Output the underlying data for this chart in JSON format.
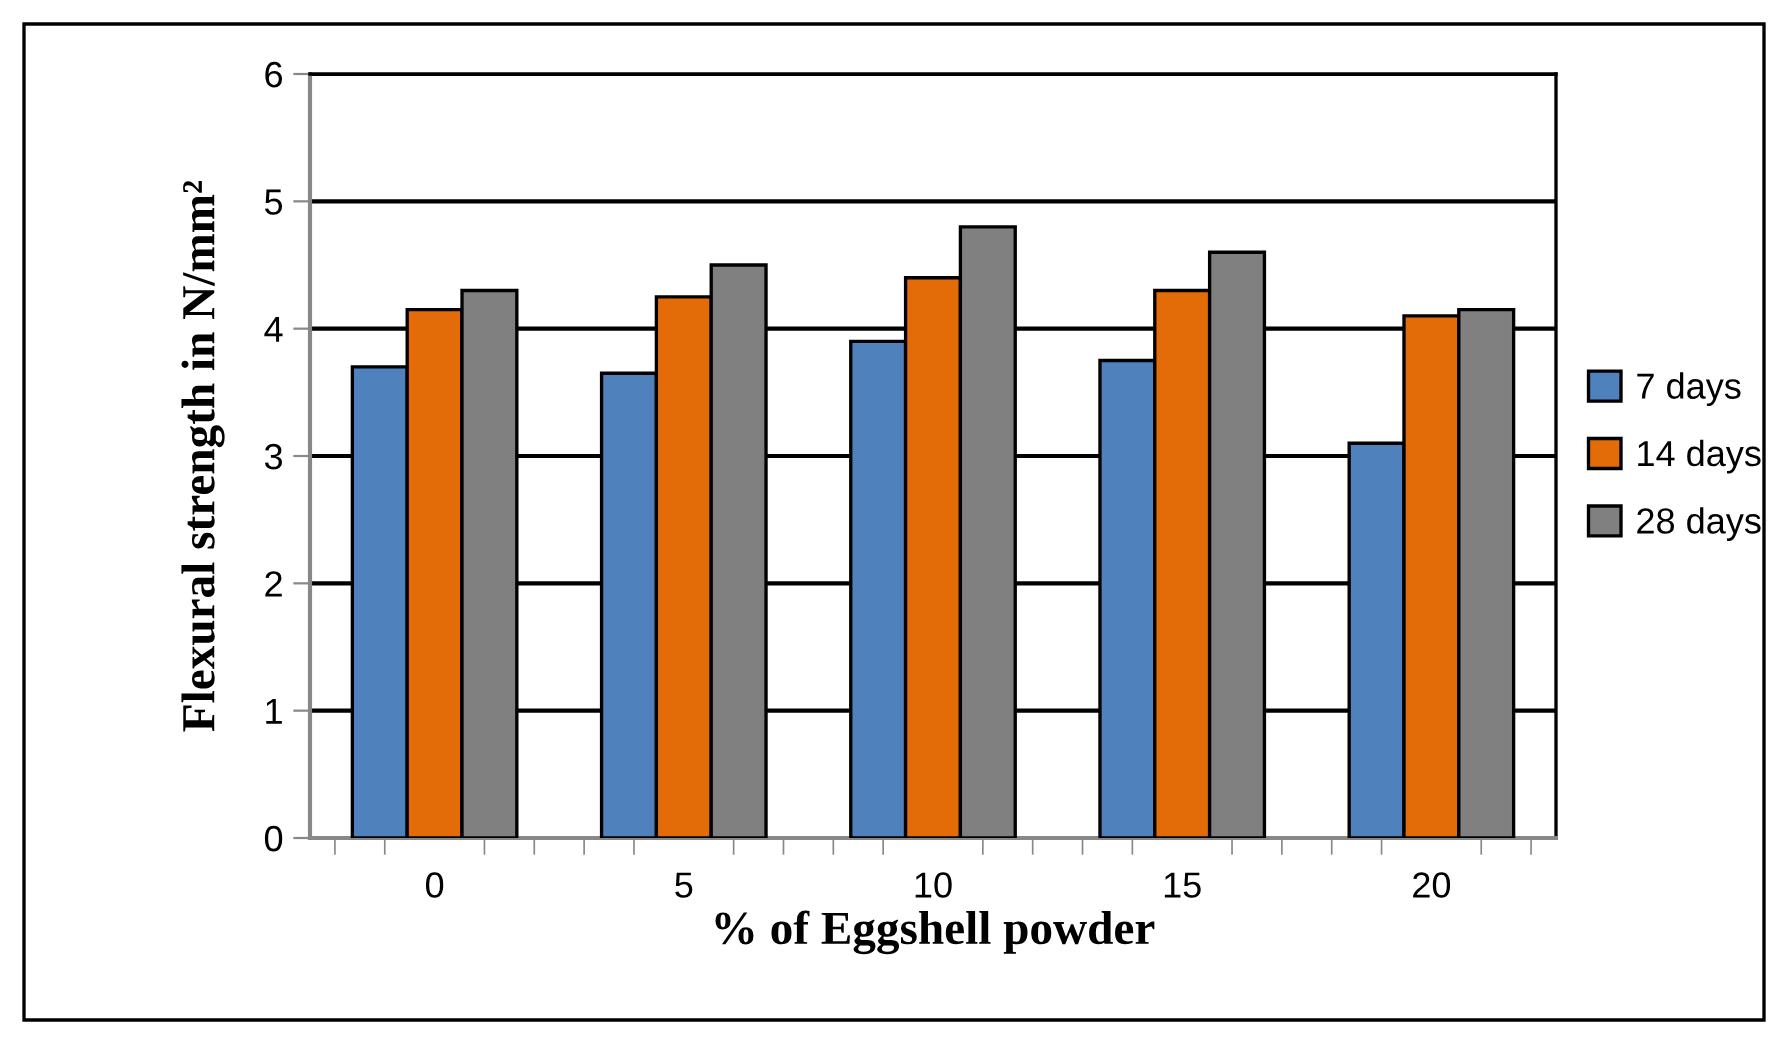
{
  "chart_data": {
    "type": "bar",
    "xlabel": "% of Eggshell powder",
    "ylabel": "Flexural strength in N/mm²",
    "categories": [
      "0",
      "5",
      "10",
      "15",
      "20"
    ],
    "series": [
      {
        "name": "7 days",
        "color": "#4f81bd",
        "values": [
          3.7,
          3.65,
          3.9,
          3.75,
          3.1
        ]
      },
      {
        "name": "14 days",
        "color": "#e36c09",
        "values": [
          4.15,
          4.25,
          4.4,
          4.3,
          4.1
        ]
      },
      {
        "name": "28 days",
        "color": "#808080",
        "values": [
          4.3,
          4.5,
          4.8,
          4.6,
          4.15
        ]
      }
    ],
    "ylim": [
      0,
      6
    ],
    "yticks": [
      0,
      1,
      2,
      3,
      4,
      5,
      6
    ],
    "grid": "y",
    "legend": "right"
  }
}
